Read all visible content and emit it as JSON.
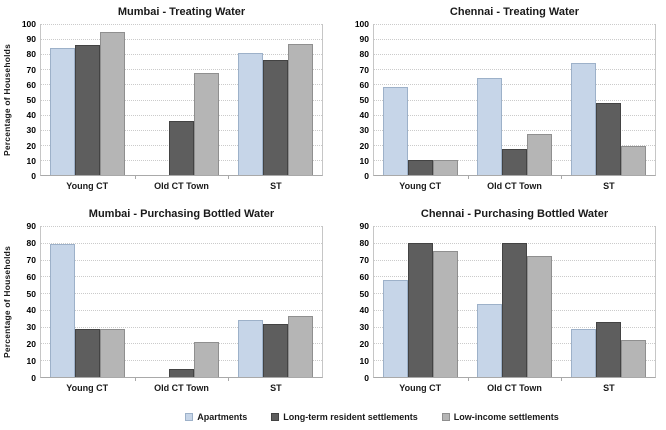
{
  "figure_title": "",
  "ylabel_text": "Percentage of Households",
  "series_styles": [
    {
      "name": "Apartments",
      "fill": "#c6d5e8",
      "border": "#9db1c9"
    },
    {
      "name": "Long-term resident settlements",
      "fill": "#5e5e5e",
      "border": "#434343"
    },
    {
      "name": "Low-income settlements",
      "fill": "#b5b5b5",
      "border": "#8f8f8f"
    }
  ],
  "axis_colors": {
    "gridline": "#cbcbcb",
    "axis_line": "#c6c6c6",
    "baseline": "#a9a9a9",
    "text": "#1a1a1a"
  },
  "chart_data": [
    {
      "type": "bar",
      "title": "Mumbai - Treating Water",
      "categories": [
        "Young CT",
        "Old CT Town",
        "ST"
      ],
      "series": [
        {
          "name": "Apartments",
          "values": [
            84,
            0,
            81
          ]
        },
        {
          "name": "Long-term resident settlements",
          "values": [
            86,
            36,
            76
          ]
        },
        {
          "name": "Low-income settlements",
          "values": [
            95,
            67.5,
            87
          ]
        }
      ],
      "ylabel": "Percentage of Households",
      "ylim": [
        0,
        100
      ],
      "yticks": [
        0,
        10,
        20,
        30,
        40,
        50,
        60,
        70,
        80,
        90,
        100
      ],
      "grid": true,
      "legend_position": "bottom-shared"
    },
    {
      "type": "bar",
      "title": "Chennai - Treating Water",
      "categories": [
        "Young CT",
        "Old CT Town",
        "ST"
      ],
      "series": [
        {
          "name": "Apartments",
          "values": [
            58,
            64,
            74
          ]
        },
        {
          "name": "Long-term resident settlements",
          "values": [
            10,
            17,
            48
          ]
        },
        {
          "name": "Low-income settlements",
          "values": [
            10,
            27,
            19
          ]
        }
      ],
      "ylabel": "",
      "ylim": [
        0,
        100
      ],
      "yticks": [
        0,
        10,
        20,
        30,
        40,
        50,
        60,
        70,
        80,
        90,
        100
      ],
      "grid": true,
      "legend_position": "bottom-shared"
    },
    {
      "type": "bar",
      "title": "Mumbai - Purchasing Bottled Water",
      "categories": [
        "Young CT",
        "Old CT Town",
        "ST"
      ],
      "series": [
        {
          "name": "Apartments",
          "values": [
            79,
            0,
            34
          ]
        },
        {
          "name": "Long-term resident settlements",
          "values": [
            28.5,
            4.5,
            31.5
          ]
        },
        {
          "name": "Low-income settlements",
          "values": [
            28.5,
            21,
            36.5
          ]
        }
      ],
      "ylabel": "Percentage of Households",
      "ylim": [
        0,
        90
      ],
      "yticks": [
        0,
        10,
        20,
        30,
        40,
        50,
        60,
        70,
        80,
        90
      ],
      "grid": true,
      "legend_position": "bottom-shared"
    },
    {
      "type": "bar",
      "title": "Chennai - Purchasing Bottled Water",
      "categories": [
        "Young CT",
        "Old CT Town",
        "ST"
      ],
      "series": [
        {
          "name": "Apartments",
          "values": [
            58,
            43.5,
            28.5
          ]
        },
        {
          "name": "Long-term resident settlements",
          "values": [
            80,
            80,
            32.5
          ]
        },
        {
          "name": "Low-income settlements",
          "values": [
            75,
            72,
            22
          ]
        }
      ],
      "ylabel": "",
      "ylim": [
        0,
        90
      ],
      "yticks": [
        0,
        10,
        20,
        30,
        40,
        50,
        60,
        70,
        80,
        90
      ],
      "grid": true,
      "legend_position": "bottom-shared"
    }
  ],
  "legend": {
    "items": [
      "Apartments",
      "Long-term resident settlements",
      "Low-income settlements"
    ]
  }
}
